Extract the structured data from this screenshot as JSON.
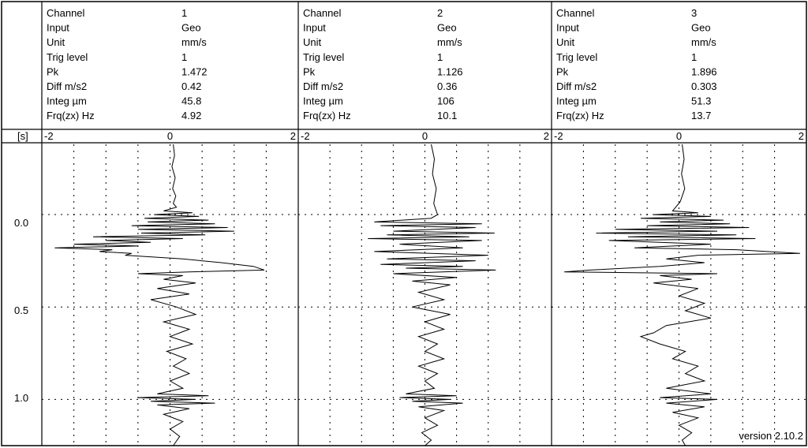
{
  "left_axis": {
    "unit_label": "[s]",
    "ticks": [
      "0.0",
      "0.5",
      "1.0"
    ]
  },
  "version": "version 2.10.2",
  "channels": [
    {
      "rows": [
        {
          "label": "Channel",
          "value": "1"
        },
        {
          "label": "Input",
          "value": "Geo"
        },
        {
          "label": "Unit",
          "value": "mm/s"
        },
        {
          "label": "Trig level",
          "value": "1"
        },
        {
          "label": "Pk",
          "value": "1.472"
        },
        {
          "label": "Diff m/s2",
          "value": "0.42"
        },
        {
          "label": "Integ µm",
          "value": "45.8"
        },
        {
          "label": "Frq(zx) Hz",
          "value": "4.92"
        }
      ],
      "xticks": [
        "-2",
        "0",
        "2"
      ]
    },
    {
      "rows": [
        {
          "label": "Channel",
          "value": "2"
        },
        {
          "label": "Input",
          "value": "Geo"
        },
        {
          "label": "Unit",
          "value": "mm/s"
        },
        {
          "label": "Trig level",
          "value": "1"
        },
        {
          "label": "Pk",
          "value": "1.126"
        },
        {
          "label": "Diff m/s2",
          "value": "0.36"
        },
        {
          "label": "Integ µm",
          "value": "106"
        },
        {
          "label": "Frq(zx) Hz",
          "value": "10.1"
        }
      ],
      "xticks": [
        "-2",
        "0",
        "2"
      ]
    },
    {
      "rows": [
        {
          "label": "Channel",
          "value": "3"
        },
        {
          "label": "Input",
          "value": "Geo"
        },
        {
          "label": "Unit",
          "value": "mm/s"
        },
        {
          "label": "Trig level",
          "value": "1"
        },
        {
          "label": "Pk",
          "value": "1.896"
        },
        {
          "label": "Diff m/s2",
          "value": "0.303"
        },
        {
          "label": "Integ µm",
          "value": "51.3"
        },
        {
          "label": "Frq(zx) Hz",
          "value": "13.7"
        }
      ],
      "xticks": [
        "-2",
        "0",
        "2"
      ]
    }
  ],
  "chart_data": {
    "type": "line",
    "title": "",
    "xlabel": "",
    "ylabel": "[s]",
    "xlim": [
      -2,
      2
    ],
    "ylim": [
      -0.38,
      1.25
    ],
    "y_inverted": true,
    "grid": true,
    "series": [
      {
        "points": [
          [
            0.05,
            -0.38
          ],
          [
            0.07,
            -0.32
          ],
          [
            0.03,
            -0.26
          ],
          [
            0.08,
            -0.2
          ],
          [
            0.04,
            -0.14
          ],
          [
            0.09,
            -0.1
          ],
          [
            0.05,
            -0.06
          ],
          [
            0.1,
            -0.04
          ],
          [
            -0.1,
            -0.02
          ],
          [
            0.35,
            -0.01
          ],
          [
            -0.25,
            0.0
          ],
          [
            0.45,
            0.01
          ],
          [
            -0.4,
            0.02
          ],
          [
            0.6,
            0.03
          ],
          [
            -0.35,
            0.04
          ],
          [
            0.7,
            0.05
          ],
          [
            -0.6,
            0.06
          ],
          [
            0.9,
            0.07
          ],
          [
            -0.5,
            0.08
          ],
          [
            1.0,
            0.09
          ],
          [
            -0.45,
            0.1
          ],
          [
            0.55,
            0.11
          ],
          [
            -1.2,
            0.12
          ],
          [
            0.2,
            0.13
          ],
          [
            -1.0,
            0.14
          ],
          [
            -0.3,
            0.15
          ],
          [
            -1.5,
            0.16
          ],
          [
            -0.5,
            0.17
          ],
          [
            -1.8,
            0.18
          ],
          [
            -0.9,
            0.19
          ],
          [
            -1.1,
            0.2
          ],
          [
            -0.6,
            0.21
          ],
          [
            -0.7,
            0.22
          ],
          [
            0.2,
            0.24
          ],
          [
            0.8,
            0.26
          ],
          [
            1.3,
            0.28
          ],
          [
            1.47,
            0.3
          ],
          [
            0.3,
            0.31
          ],
          [
            -0.5,
            0.32
          ],
          [
            0.2,
            0.33
          ],
          [
            -0.1,
            0.35
          ],
          [
            0.4,
            0.37
          ],
          [
            -0.2,
            0.4
          ],
          [
            0.3,
            0.43
          ],
          [
            -0.3,
            0.46
          ],
          [
            0.1,
            0.5
          ],
          [
            0.4,
            0.54
          ],
          [
            -0.1,
            0.58
          ],
          [
            0.3,
            0.62
          ],
          [
            0.0,
            0.66
          ],
          [
            0.35,
            0.7
          ],
          [
            -0.05,
            0.74
          ],
          [
            0.25,
            0.78
          ],
          [
            0.05,
            0.82
          ],
          [
            0.3,
            0.86
          ],
          [
            0.0,
            0.9
          ],
          [
            0.2,
            0.94
          ],
          [
            -0.2,
            0.97
          ],
          [
            0.6,
            0.98
          ],
          [
            -0.5,
            0.99
          ],
          [
            0.4,
            1.0
          ],
          [
            -0.3,
            1.01
          ],
          [
            0.7,
            1.02
          ],
          [
            -0.2,
            1.03
          ],
          [
            0.3,
            1.05
          ],
          [
            -0.1,
            1.08
          ],
          [
            0.2,
            1.12
          ],
          [
            0.0,
            1.16
          ],
          [
            0.15,
            1.2
          ],
          [
            0.05,
            1.25
          ]
        ]
      },
      {
        "points": [
          [
            0.1,
            -0.38
          ],
          [
            0.15,
            -0.3
          ],
          [
            0.12,
            -0.22
          ],
          [
            0.18,
            -0.14
          ],
          [
            0.14,
            -0.06
          ],
          [
            0.2,
            0.0
          ],
          [
            0.1,
            0.02
          ],
          [
            -0.8,
            0.04
          ],
          [
            0.9,
            0.05
          ],
          [
            -0.7,
            0.06
          ],
          [
            0.8,
            0.07
          ],
          [
            -0.5,
            0.09
          ],
          [
            1.1,
            0.1
          ],
          [
            -0.6,
            0.11
          ],
          [
            0.7,
            0.12
          ],
          [
            -0.9,
            0.13
          ],
          [
            0.9,
            0.14
          ],
          [
            -0.4,
            0.16
          ],
          [
            0.6,
            0.18
          ],
          [
            -0.8,
            0.2
          ],
          [
            1.0,
            0.22
          ],
          [
            -0.6,
            0.24
          ],
          [
            0.8,
            0.25
          ],
          [
            -0.7,
            0.27
          ],
          [
            0.6,
            0.28
          ],
          [
            -0.3,
            0.29
          ],
          [
            1.12,
            0.3
          ],
          [
            -0.5,
            0.32
          ],
          [
            0.5,
            0.34
          ],
          [
            -0.2,
            0.36
          ],
          [
            0.4,
            0.38
          ],
          [
            -0.1,
            0.42
          ],
          [
            0.3,
            0.46
          ],
          [
            -0.2,
            0.5
          ],
          [
            0.4,
            0.54
          ],
          [
            0.0,
            0.58
          ],
          [
            0.3,
            0.62
          ],
          [
            -0.1,
            0.66
          ],
          [
            0.2,
            0.7
          ],
          [
            0.0,
            0.74
          ],
          [
            0.3,
            0.78
          ],
          [
            -0.1,
            0.82
          ],
          [
            0.2,
            0.86
          ],
          [
            0.0,
            0.9
          ],
          [
            0.15,
            0.94
          ],
          [
            -0.3,
            0.97
          ],
          [
            0.5,
            0.98
          ],
          [
            -0.4,
            0.99
          ],
          [
            0.4,
            1.0
          ],
          [
            -0.2,
            1.01
          ],
          [
            0.6,
            1.02
          ],
          [
            -0.1,
            1.04
          ],
          [
            0.3,
            1.06
          ],
          [
            0.0,
            1.1
          ],
          [
            0.2,
            1.14
          ],
          [
            -0.05,
            1.18
          ],
          [
            0.1,
            1.22
          ],
          [
            0.0,
            1.25
          ]
        ]
      },
      {
        "points": [
          [
            0.05,
            -0.38
          ],
          [
            0.08,
            -0.3
          ],
          [
            0.04,
            -0.22
          ],
          [
            0.09,
            -0.14
          ],
          [
            0.02,
            -0.07
          ],
          [
            -0.1,
            -0.02
          ],
          [
            0.3,
            -0.01
          ],
          [
            -0.4,
            0.0
          ],
          [
            0.5,
            0.01
          ],
          [
            -0.6,
            0.02
          ],
          [
            0.7,
            0.03
          ],
          [
            -0.3,
            0.04
          ],
          [
            0.8,
            0.05
          ],
          [
            -0.5,
            0.06
          ],
          [
            1.1,
            0.07
          ],
          [
            -1.0,
            0.08
          ],
          [
            0.6,
            0.09
          ],
          [
            -1.3,
            0.1
          ],
          [
            0.9,
            0.11
          ],
          [
            -0.8,
            0.12
          ],
          [
            1.2,
            0.13
          ],
          [
            -1.1,
            0.14
          ],
          [
            0.5,
            0.16
          ],
          [
            -0.7,
            0.18
          ],
          [
            0.9,
            0.19
          ],
          [
            1.9,
            0.21
          ],
          [
            0.3,
            0.22
          ],
          [
            -0.2,
            0.24
          ],
          [
            0.4,
            0.26
          ],
          [
            -0.3,
            0.28
          ],
          [
            -1.4,
            0.3
          ],
          [
            -1.8,
            0.31
          ],
          [
            0.6,
            0.32
          ],
          [
            -0.3,
            0.33
          ],
          [
            0.2,
            0.35
          ],
          [
            -0.4,
            0.37
          ],
          [
            0.3,
            0.4
          ],
          [
            0.0,
            0.44
          ],
          [
            0.4,
            0.48
          ],
          [
            0.1,
            0.52
          ],
          [
            0.5,
            0.56
          ],
          [
            -0.2,
            0.6
          ],
          [
            -0.4,
            0.64
          ],
          [
            -0.6,
            0.66
          ],
          [
            -0.3,
            0.7
          ],
          [
            0.1,
            0.74
          ],
          [
            -0.1,
            0.78
          ],
          [
            0.3,
            0.82
          ],
          [
            0.1,
            0.86
          ],
          [
            0.4,
            0.9
          ],
          [
            -0.2,
            0.94
          ],
          [
            0.5,
            0.97
          ],
          [
            -0.3,
            0.99
          ],
          [
            0.6,
            1.0
          ],
          [
            -0.2,
            1.02
          ],
          [
            0.4,
            1.04
          ],
          [
            -0.1,
            1.07
          ],
          [
            0.3,
            1.1
          ],
          [
            0.0,
            1.14
          ],
          [
            0.2,
            1.18
          ],
          [
            0.05,
            1.22
          ],
          [
            0.1,
            1.25
          ]
        ]
      }
    ]
  }
}
